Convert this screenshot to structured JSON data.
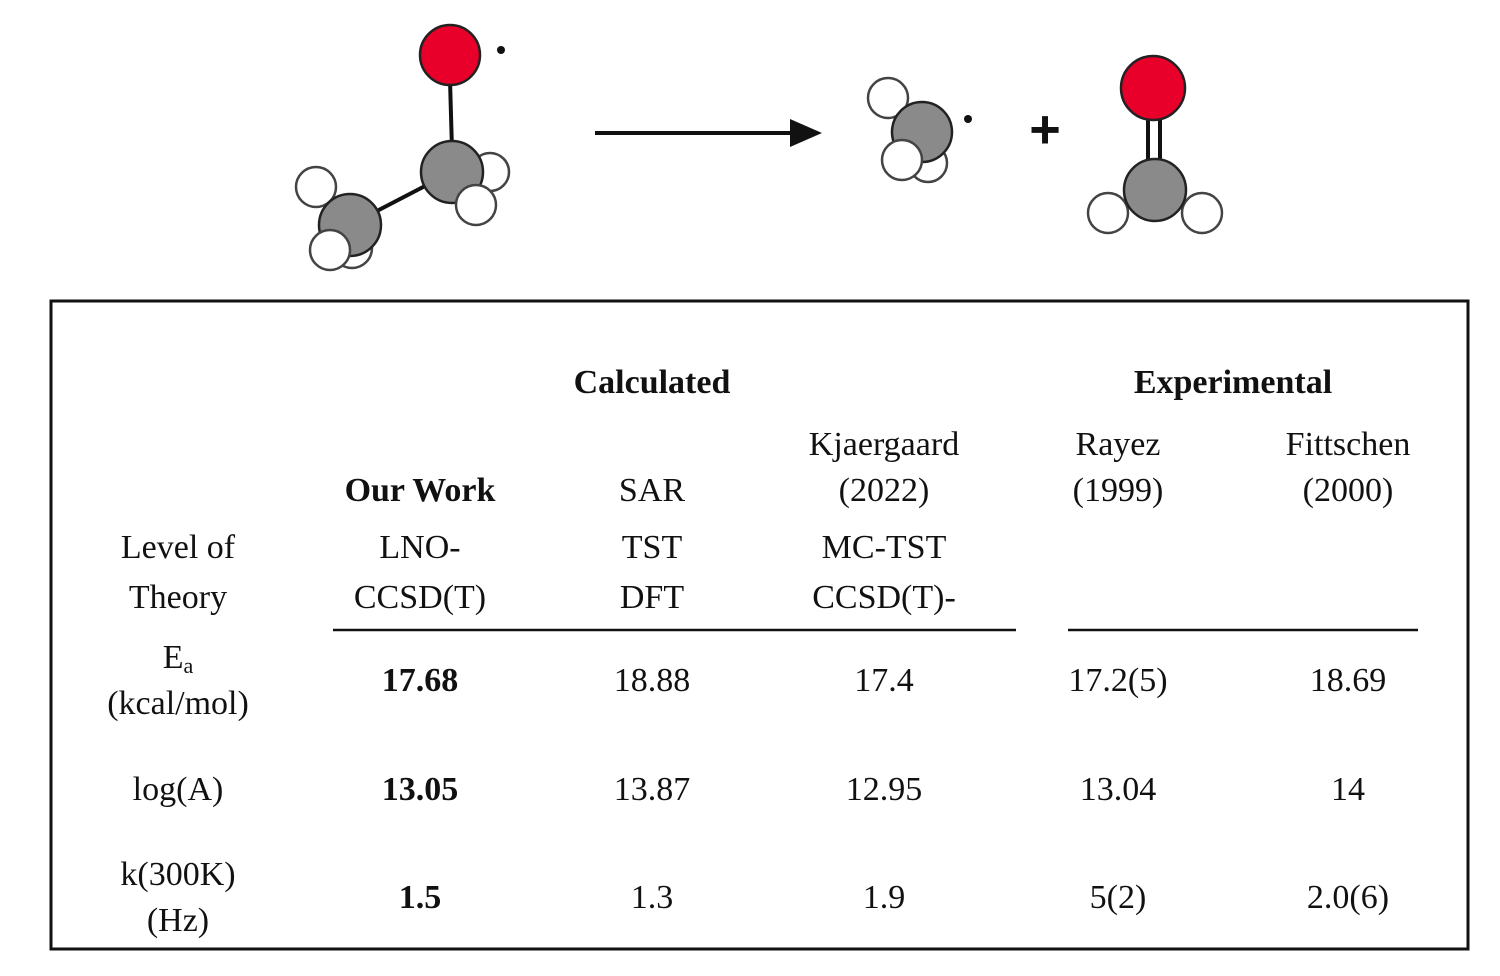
{
  "reaction": {
    "plus": "+"
  },
  "table": {
    "groups": [
      "Calculated",
      "Experimental"
    ],
    "row_header": [
      "Level of",
      "Theory"
    ],
    "columns": [
      {
        "author": [
          "Our Work"
        ],
        "method": [
          "LNO-",
          "CCSD(T)"
        ]
      },
      {
        "author": [
          "SAR"
        ],
        "method": [
          "TST",
          "DFT"
        ]
      },
      {
        "author": [
          "Kjaergaard",
          "(2022)"
        ],
        "method": [
          "MC-TST",
          "CCSD(T)-"
        ]
      },
      {
        "author": [
          "Rayez",
          "(1999)"
        ]
      },
      {
        "author": [
          "Fittschen",
          "(2000)"
        ]
      }
    ],
    "rows": [
      {
        "label": "E",
        "sub": "a",
        "unit": "(kcal/mol)",
        "values": [
          "17.68",
          "18.88",
          "17.4",
          "17.2(5)",
          "18.69"
        ]
      },
      {
        "label": "log(A)",
        "values": [
          "13.05",
          "13.87",
          "12.95",
          "13.04",
          "14"
        ]
      },
      {
        "label": "k(300K)",
        "unit": "(Hz)",
        "values": [
          "1.5",
          "1.3",
          "1.9",
          "5(2)",
          "2.0(6)"
        ]
      }
    ]
  }
}
